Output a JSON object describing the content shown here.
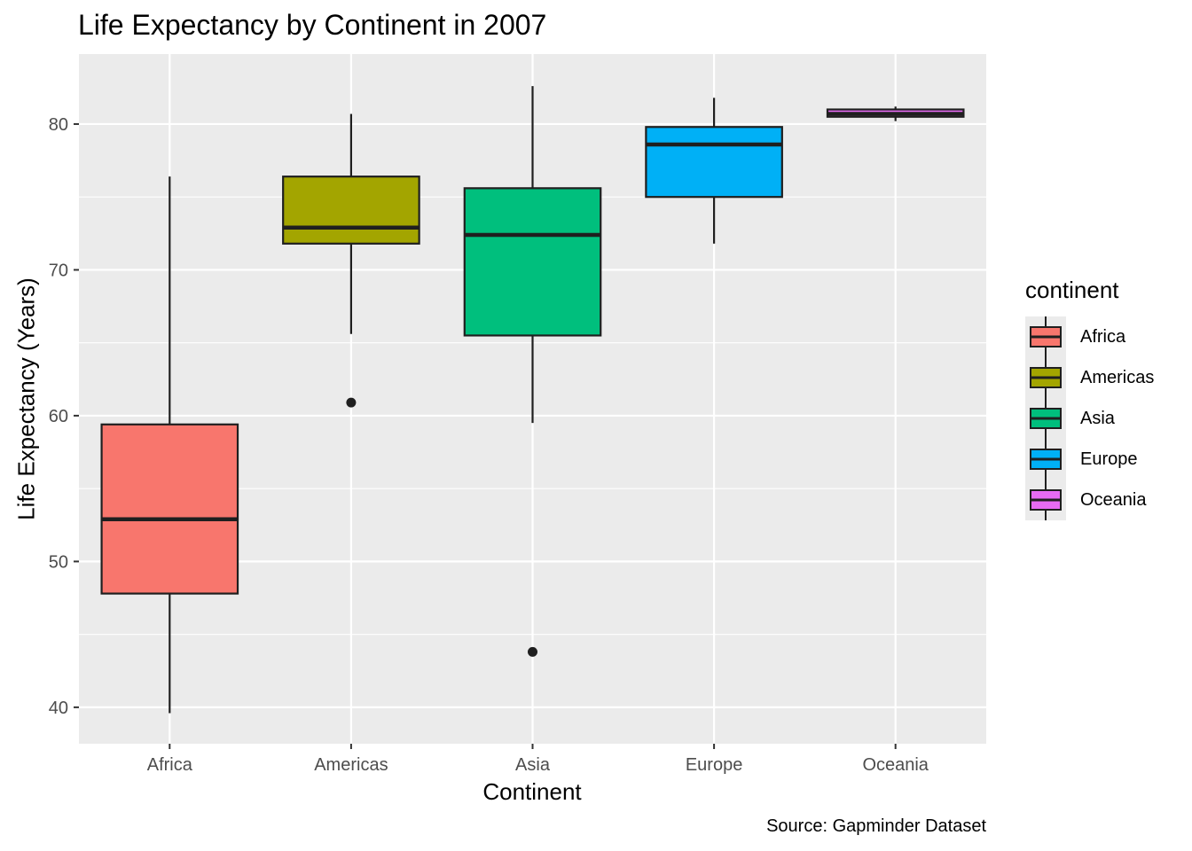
{
  "chart_data": {
    "type": "box",
    "title": "Life Expectancy by Continent in 2007",
    "xlabel": "Continent",
    "ylabel": "Life Expectancy (Years)",
    "caption": "Source: Gapminder Dataset",
    "ylim": [
      37.5,
      84.8
    ],
    "yticks": [
      40,
      50,
      60,
      70,
      80
    ],
    "grid": true,
    "legend": {
      "title": "continent",
      "position": "right"
    },
    "categories": [
      "Africa",
      "Americas",
      "Asia",
      "Europe",
      "Oceania"
    ],
    "colors": [
      "#F8766D",
      "#A3A500",
      "#00BF7D",
      "#00B0F6",
      "#E76BF3"
    ],
    "boxes": [
      {
        "category": "Africa",
        "min": 39.6,
        "q1": 47.8,
        "median": 52.9,
        "q3": 59.4,
        "max": 76.4,
        "outliers": []
      },
      {
        "category": "Americas",
        "min": 65.6,
        "q1": 71.8,
        "median": 72.9,
        "q3": 76.4,
        "max": 80.7,
        "outliers": [
          60.9
        ]
      },
      {
        "category": "Asia",
        "min": 59.5,
        "q1": 65.5,
        "median": 72.4,
        "q3": 75.6,
        "max": 82.6,
        "outliers": [
          43.8
        ]
      },
      {
        "category": "Europe",
        "min": 71.8,
        "q1": 75.0,
        "median": 78.6,
        "q3": 79.8,
        "max": 81.8,
        "outliers": []
      },
      {
        "category": "Oceania",
        "min": 80.2,
        "q1": 80.5,
        "median": 80.7,
        "q3": 81.0,
        "max": 81.2,
        "outliers": []
      }
    ]
  }
}
